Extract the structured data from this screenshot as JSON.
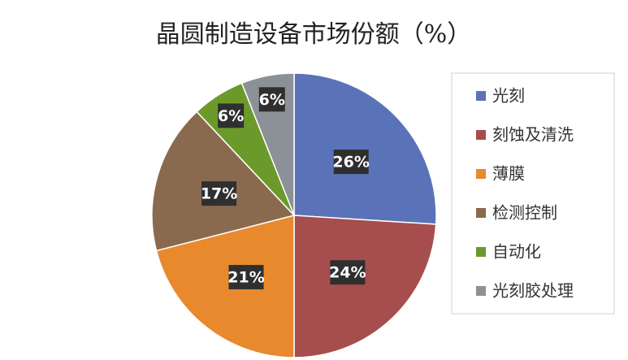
{
  "chart_data": {
    "type": "pie",
    "title": "晶圆制造设备市场份额（%）",
    "categories": [
      "光刻",
      "刻蚀及清洗",
      "薄膜",
      "检测控制",
      "自动化",
      "光刻胶处理"
    ],
    "values": [
      26,
      24,
      21,
      17,
      6,
      6
    ],
    "value_labels": [
      "26%",
      "24%",
      "21%",
      "17%",
      "6%",
      "6%"
    ],
    "colors": [
      "#5a73b8",
      "#a64d4d",
      "#e8892e",
      "#8a6a4e",
      "#6b9a2a",
      "#8b9196"
    ],
    "legend": "right"
  }
}
